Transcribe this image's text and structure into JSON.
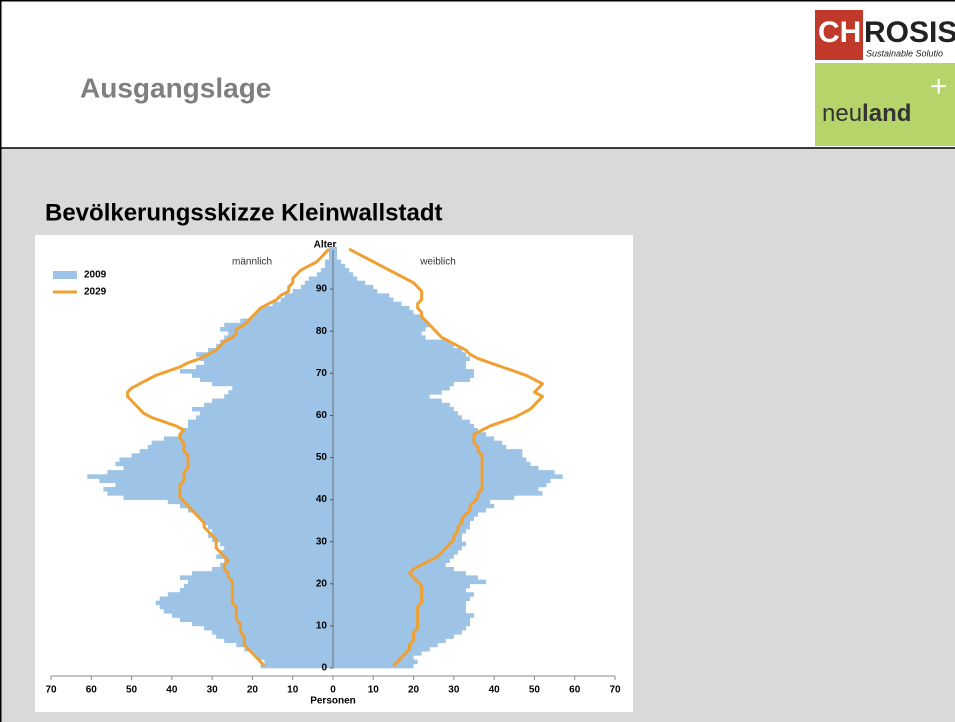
{
  "header": {
    "title": "Ausgangslage",
    "subtitle": "Bevölkerungsskizze Kleinwallstadt"
  },
  "logos": {
    "chrosis_a": "CH",
    "chrosis_b": "ROSIS",
    "chrosis_tagline": "Sustainable Solutio",
    "neuland_a": "neu",
    "neuland_b": "land",
    "neuland_plus": "+"
  },
  "chart_data": {
    "type": "pyramid",
    "y_label": "Alter",
    "x_label": "Personen",
    "left_label": "männlich",
    "right_label": "weiblich",
    "ylim": [
      0,
      100
    ],
    "yticks": [
      0,
      10,
      20,
      30,
      40,
      50,
      60,
      70,
      80,
      90
    ],
    "xlim": [
      0,
      70
    ],
    "xticks": [
      0,
      10,
      20,
      30,
      40,
      50,
      60,
      70
    ],
    "ages": [
      0,
      1,
      2,
      3,
      4,
      5,
      6,
      7,
      8,
      9,
      10,
      11,
      12,
      13,
      14,
      15,
      16,
      17,
      18,
      19,
      20,
      21,
      22,
      23,
      24,
      25,
      26,
      27,
      28,
      29,
      30,
      31,
      32,
      33,
      34,
      35,
      36,
      37,
      38,
      39,
      40,
      41,
      42,
      43,
      44,
      45,
      46,
      47,
      48,
      49,
      50,
      51,
      52,
      53,
      54,
      55,
      56,
      57,
      58,
      59,
      60,
      61,
      62,
      63,
      64,
      65,
      66,
      67,
      68,
      69,
      70,
      71,
      72,
      73,
      74,
      75,
      76,
      77,
      78,
      79,
      80,
      81,
      82,
      83,
      84,
      85,
      86,
      87,
      88,
      89,
      90,
      91,
      92,
      93,
      94,
      95,
      96,
      97,
      98,
      99
    ],
    "series": [
      {
        "name": "2009",
        "color": "#9dc3e6",
        "style": "bar",
        "male": [
          18,
          17,
          19,
          20,
          22,
          24,
          27,
          29,
          30,
          32,
          35,
          38,
          40,
          42,
          43,
          44,
          43,
          41,
          38,
          37,
          36,
          38,
          35,
          30,
          28,
          27,
          29,
          28,
          27,
          28,
          30,
          31,
          30,
          31,
          32,
          33,
          34,
          36,
          38,
          41,
          52,
          56,
          57,
          54,
          58,
          61,
          56,
          52,
          54,
          53,
          50,
          48,
          46,
          45,
          42,
          38,
          37,
          36,
          36,
          34,
          33,
          35,
          32,
          30,
          27,
          26,
          25,
          30,
          33,
          35,
          38,
          34,
          32,
          33,
          34,
          31,
          29,
          28,
          27,
          26,
          28,
          27,
          23,
          20,
          19,
          18,
          15,
          13,
          12,
          10,
          8,
          7,
          6,
          4,
          3,
          2,
          2,
          1,
          1,
          1
        ],
        "female": [
          20,
          21,
          20,
          22,
          24,
          26,
          28,
          30,
          32,
          33,
          34,
          34,
          35,
          33,
          33,
          33,
          34,
          35,
          33,
          34,
          38,
          36,
          33,
          30,
          28,
          29,
          30,
          31,
          32,
          33,
          32,
          32,
          33,
          34,
          34,
          35,
          36,
          38,
          40,
          39,
          45,
          52,
          51,
          53,
          54,
          57,
          55,
          51,
          49,
          48,
          47,
          47,
          43,
          42,
          40,
          38,
          36,
          35,
          34,
          32,
          31,
          30,
          29,
          27,
          24,
          27,
          29,
          30,
          34,
          35,
          35,
          33,
          33,
          34,
          33,
          32,
          30,
          29,
          23,
          22,
          23,
          24,
          23,
          22,
          20,
          19,
          17,
          15,
          14,
          11,
          10,
          8,
          6,
          5,
          4,
          3,
          2,
          1,
          1,
          1
        ]
      },
      {
        "name": "2029",
        "color": "#f0a030",
        "style": "line",
        "male": [
          17,
          18,
          19,
          20,
          21,
          22,
          22,
          22,
          23,
          23,
          23,
          24,
          24,
          24,
          24,
          25,
          25,
          25,
          25,
          25,
          25,
          26,
          26,
          27,
          27,
          26,
          27,
          28,
          29,
          29,
          29,
          30,
          31,
          32,
          32,
          33,
          34,
          35,
          36,
          37,
          38,
          38,
          38,
          38,
          37,
          37,
          37,
          36,
          36,
          36,
          36,
          37,
          37,
          37,
          38,
          38,
          37,
          39,
          42,
          45,
          47,
          48,
          49,
          50,
          51,
          51,
          50,
          48,
          46,
          44,
          41,
          38,
          36,
          33,
          31,
          29,
          28,
          27,
          25,
          24,
          24,
          22,
          21,
          20,
          19,
          18,
          16,
          14,
          13,
          11,
          11,
          10,
          10,
          9,
          8,
          6,
          4,
          3,
          2,
          1
        ],
        "female": [
          15,
          16,
          17,
          18,
          19,
          19,
          20,
          20,
          20,
          21,
          21,
          21,
          21,
          21,
          21,
          22,
          22,
          22,
          22,
          22,
          21,
          20,
          19,
          20,
          22,
          24,
          26,
          27,
          28,
          29,
          30,
          30,
          31,
          31,
          32,
          32,
          33,
          34,
          34,
          35,
          36,
          36,
          37,
          37,
          37,
          37,
          37,
          37,
          37,
          37,
          37,
          36,
          36,
          35,
          35,
          35,
          37,
          39,
          42,
          45,
          47,
          49,
          50,
          51,
          52,
          50,
          51,
          52,
          50,
          48,
          45,
          42,
          39,
          36,
          34,
          33,
          31,
          29,
          27,
          26,
          25,
          24,
          23,
          22,
          22,
          21,
          21,
          22,
          22,
          22,
          21,
          20,
          18,
          16,
          14,
          12,
          10,
          8,
          6,
          4
        ]
      }
    ]
  }
}
